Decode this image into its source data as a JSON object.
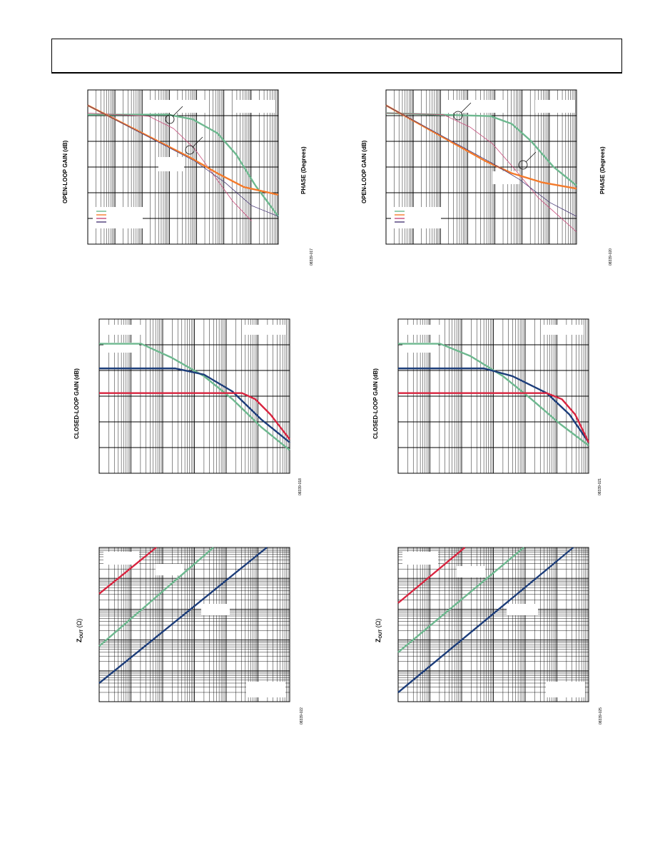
{
  "header": {
    "text": ""
  },
  "colors": {
    "green": "#6db88f",
    "orange": "#f47a2a",
    "red": "#d8243f",
    "pink": "#c84a7a",
    "blue": "#1c3d7a",
    "purple": "#4a3a78",
    "grid": "#000000"
  },
  "labels": {
    "open_loop_gain": "OPEN-LOOP GAIN (dB)",
    "phase": "PHASE (Degrees)",
    "closed_loop_gain": "CLOSED-LOOP GAIN (dB)",
    "zout_main": "Z",
    "zout_sub": "OUT",
    "zout_unit": " (Ω)"
  },
  "figure_codes": {
    "fig1": "08339-017",
    "fig2": "08339-020",
    "fig3": "08339-018",
    "fig4": "08339-021",
    "fig5": "08339-022",
    "fig6": "08339-025"
  },
  "chart_data": [
    {
      "type": "line",
      "series": [
        {
          "key": "green",
          "values": [
            [
              0,
              0.16
            ],
            [
              0.42,
              0.16
            ],
            [
              0.55,
              0.19
            ],
            [
              0.68,
              0.28
            ],
            [
              0.78,
              0.42
            ],
            [
              0.88,
              0.62
            ],
            [
              1,
              0.82
            ]
          ]
        },
        {
          "key": "pink",
          "values": [
            [
              0,
              0.15
            ],
            [
              0.32,
              0.17
            ],
            [
              0.45,
              0.25
            ],
            [
              0.56,
              0.38
            ],
            [
              0.66,
              0.55
            ],
            [
              0.76,
              0.72
            ],
            [
              0.86,
              0.85
            ]
          ]
        },
        {
          "key": "orange",
          "values": [
            [
              0,
              0.1
            ],
            [
              0.54,
              0.44
            ],
            [
              0.68,
              0.54
            ],
            [
              0.82,
              0.63
            ],
            [
              1,
              0.68
            ]
          ]
        },
        {
          "key": "purple",
          "values": [
            [
              0,
              0.1
            ],
            [
              0.56,
              0.46
            ],
            [
              0.72,
              0.6
            ],
            [
              0.86,
              0.75
            ],
            [
              1,
              0.82
            ]
          ]
        }
      ]
    },
    {
      "type": "line",
      "series": [
        {
          "key": "green",
          "values": [
            [
              0,
              0.15
            ],
            [
              0.55,
              0.17
            ],
            [
              0.66,
              0.22
            ],
            [
              0.76,
              0.33
            ],
            [
              0.88,
              0.5
            ],
            [
              1,
              0.62
            ]
          ]
        },
        {
          "key": "pink",
          "values": [
            [
              0,
              0.15
            ],
            [
              0.3,
              0.16
            ],
            [
              0.44,
              0.24
            ],
            [
              0.56,
              0.35
            ],
            [
              0.68,
              0.52
            ],
            [
              0.8,
              0.7
            ],
            [
              1,
              0.92
            ]
          ]
        },
        {
          "key": "orange",
          "values": [
            [
              0,
              0.1
            ],
            [
              0.52,
              0.46
            ],
            [
              0.66,
              0.54
            ],
            [
              0.82,
              0.6
            ],
            [
              1,
              0.64
            ]
          ]
        },
        {
          "key": "purple",
          "values": [
            [
              0,
              0.1
            ],
            [
              0.55,
              0.47
            ],
            [
              0.7,
              0.58
            ],
            [
              0.86,
              0.73
            ],
            [
              1,
              0.82
            ]
          ]
        }
      ]
    },
    {
      "type": "line",
      "series": [
        {
          "key": "green",
          "values": [
            [
              0,
              0.16
            ],
            [
              0.22,
              0.16
            ],
            [
              0.38,
              0.25
            ],
            [
              0.55,
              0.37
            ],
            [
              0.7,
              0.52
            ],
            [
              0.85,
              0.7
            ],
            [
              1,
              0.85
            ]
          ]
        },
        {
          "key": "blue",
          "values": [
            [
              0,
              0.32
            ],
            [
              0.4,
              0.32
            ],
            [
              0.55,
              0.36
            ],
            [
              0.7,
              0.47
            ],
            [
              0.85,
              0.65
            ],
            [
              1,
              0.8
            ]
          ]
        },
        {
          "key": "red",
          "values": [
            [
              0,
              0.48
            ],
            [
              0.75,
              0.48
            ],
            [
              0.82,
              0.52
            ],
            [
              0.9,
              0.62
            ],
            [
              1,
              0.78
            ]
          ]
        }
      ]
    },
    {
      "type": "line",
      "series": [
        {
          "key": "green",
          "values": [
            [
              0,
              0.16
            ],
            [
              0.22,
              0.16
            ],
            [
              0.38,
              0.24
            ],
            [
              0.55,
              0.37
            ],
            [
              0.7,
              0.52
            ],
            [
              0.85,
              0.68
            ],
            [
              1,
              0.82
            ]
          ]
        },
        {
          "key": "blue",
          "values": [
            [
              0,
              0.32
            ],
            [
              0.45,
              0.32
            ],
            [
              0.6,
              0.37
            ],
            [
              0.78,
              0.48
            ],
            [
              0.9,
              0.62
            ],
            [
              1,
              0.8
            ]
          ]
        },
        {
          "key": "red",
          "values": [
            [
              0,
              0.48
            ],
            [
              0.78,
              0.48
            ],
            [
              0.86,
              0.52
            ],
            [
              0.93,
              0.62
            ],
            [
              1,
              0.8
            ]
          ]
        }
      ]
    },
    {
      "type": "line",
      "series": [
        {
          "key": "red",
          "values": [
            [
              0,
              0.3
            ],
            [
              0.3,
              0
            ]
          ]
        },
        {
          "key": "green",
          "values": [
            [
              0,
              0.64
            ],
            [
              0.6,
              0
            ]
          ]
        },
        {
          "key": "blue",
          "values": [
            [
              0,
              0.88
            ],
            [
              0.88,
              0
            ]
          ]
        }
      ]
    },
    {
      "type": "line",
      "series": [
        {
          "key": "red",
          "values": [
            [
              0,
              0.36
            ],
            [
              0.35,
              0
            ]
          ]
        },
        {
          "key": "green",
          "values": [
            [
              0,
              0.68
            ],
            [
              0.66,
              0
            ]
          ]
        },
        {
          "key": "blue",
          "values": [
            [
              0,
              0.94
            ],
            [
              0.92,
              0
            ]
          ]
        }
      ]
    }
  ]
}
